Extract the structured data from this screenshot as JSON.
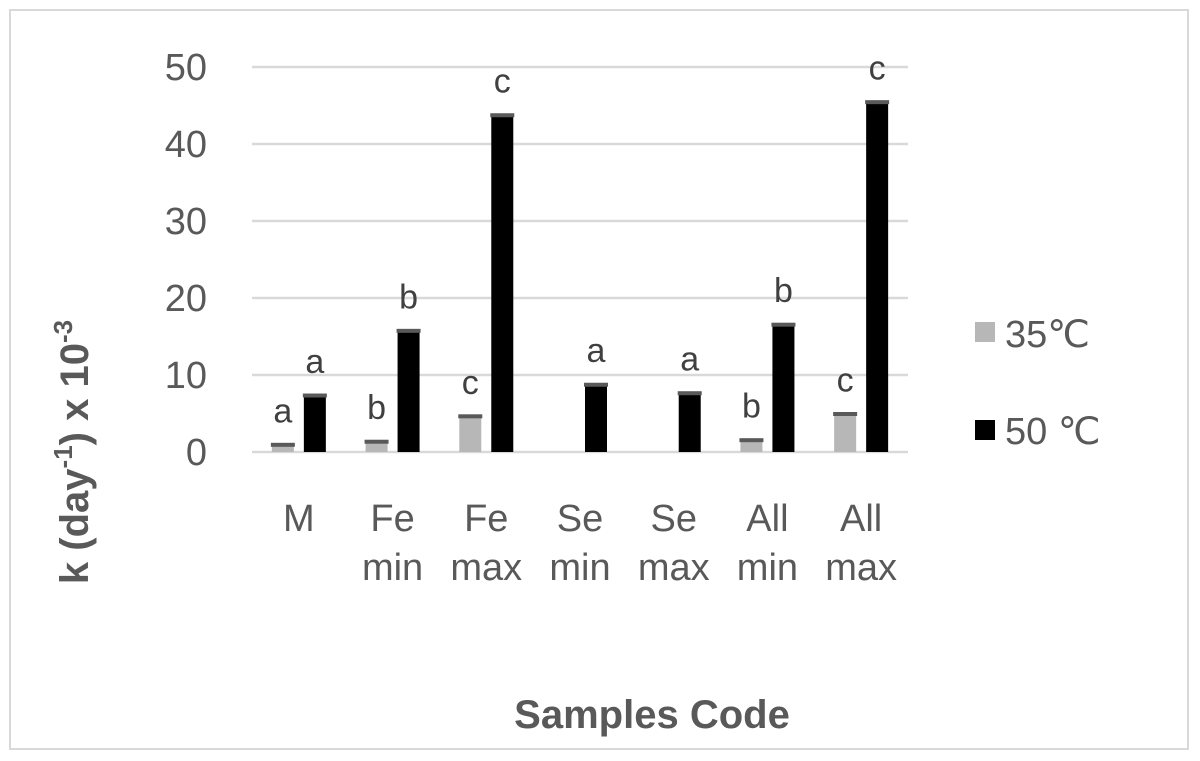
{
  "chart_data": {
    "type": "bar",
    "categories": [
      [
        "M"
      ],
      [
        "Fe",
        "min"
      ],
      [
        "Fe",
        "max"
      ],
      [
        "Se",
        "min"
      ],
      [
        "Se",
        "max"
      ],
      [
        "All",
        "min"
      ],
      [
        "All",
        "max"
      ]
    ],
    "series": [
      {
        "name": "35℃",
        "color": "#b7b7b7",
        "values": [
          1.0,
          1.4,
          4.7,
          0,
          0,
          1.6,
          5.0
        ],
        "labels": [
          "a",
          "b",
          "c",
          "",
          "",
          "b",
          "c"
        ]
      },
      {
        "name": "50 ℃",
        "color": "#000000",
        "values": [
          7.4,
          15.8,
          43.8,
          8.8,
          7.7,
          16.6,
          45.5
        ],
        "labels": [
          "a",
          "b",
          "c",
          "a",
          "a",
          "b",
          "c"
        ]
      }
    ],
    "ylim": [
      0,
      50
    ],
    "yticks": [
      0,
      10,
      20,
      30,
      40,
      50
    ],
    "ylabel_main": "k (day",
    "ylabel_sup1": "-1",
    "ylabel_mid": ") x 10",
    "ylabel_sup2": "-3",
    "xlabel": "Samples Code",
    "grid": true,
    "legend_position": "right"
  }
}
